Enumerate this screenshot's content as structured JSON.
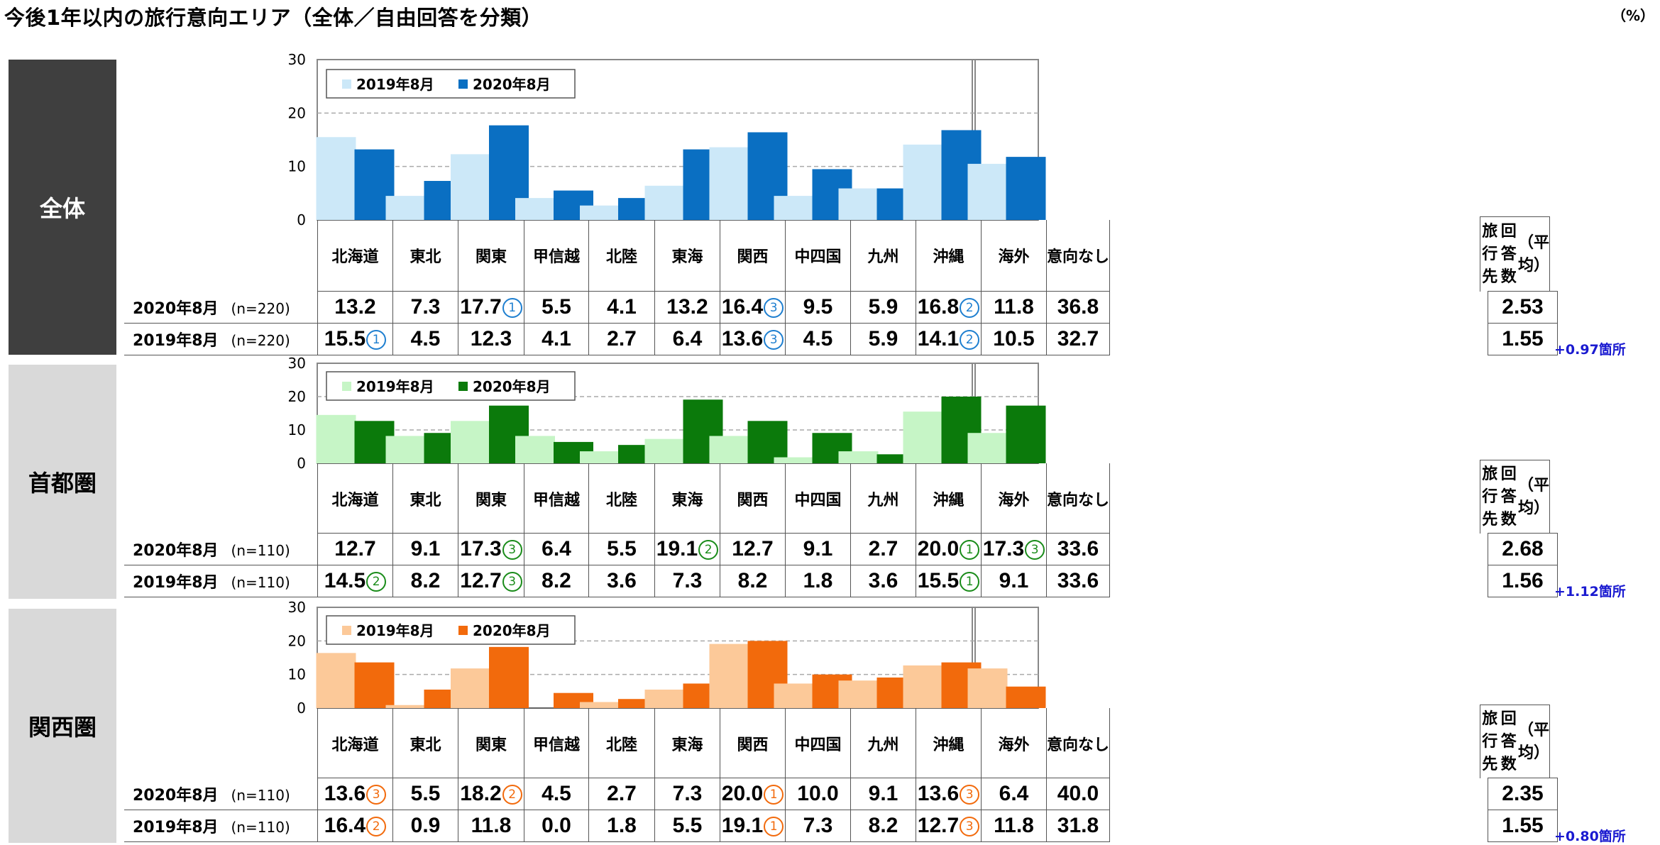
{
  "title": "今後1年以内の旅行意向エリア（全体／自由回答を分類）",
  "unit": "（%）",
  "categories": [
    "北海道",
    "東北",
    "関東",
    "甲信越",
    "北陸",
    "東海",
    "関西",
    "中四国",
    "九州",
    "沖縄",
    "海外",
    "意向なし"
  ],
  "avg_header": [
    "旅行先",
    "回答数",
    "（平均）"
  ],
  "chart_data": [
    {
      "type": "bar",
      "region": "全体",
      "categories": [
        "北海道",
        "東北",
        "関東",
        "甲信越",
        "北陸",
        "東海",
        "関西",
        "中四国",
        "九州",
        "沖縄",
        "海外"
      ],
      "series": [
        {
          "name": "2019年8月",
          "values": [
            15.5,
            4.5,
            12.3,
            4.1,
            2.7,
            6.4,
            13.6,
            4.5,
            5.9,
            14.1,
            10.5
          ]
        },
        {
          "name": "2020年8月",
          "values": [
            13.2,
            7.3,
            17.7,
            5.5,
            4.1,
            13.2,
            16.4,
            9.5,
            5.9,
            16.8,
            11.8
          ]
        }
      ],
      "ylim": [
        0,
        30
      ],
      "yticks": [
        0,
        10,
        20,
        30
      ],
      "colors": {
        "2019": "#cce8f8",
        "2020": "#0a6fc2",
        "label_bg": "#3f3f3f",
        "label_fg": "#ffffff",
        "rank": "#1e7fd0"
      },
      "rows": [
        {
          "year": "2020年8月",
          "n": "(n=220)",
          "cells": [
            "13.2",
            "7.3",
            "17.7",
            "5.5",
            "4.1",
            "13.2",
            "16.4",
            "9.5",
            "5.9",
            "16.8",
            "11.8",
            "36.8"
          ],
          "ranks": [
            "",
            "",
            "①",
            "",
            "",
            "",
            "③",
            "",
            "",
            "②",
            "",
            ""
          ],
          "avg": "2.53"
        },
        {
          "year": "2019年8月",
          "n": "(n=220)",
          "cells": [
            "15.5",
            "4.5",
            "12.3",
            "4.1",
            "2.7",
            "6.4",
            "13.6",
            "4.5",
            "5.9",
            "14.1",
            "10.5",
            "32.7"
          ],
          "ranks": [
            "①",
            "",
            "",
            "",
            "",
            "",
            "③",
            "",
            "",
            "②",
            "",
            ""
          ],
          "avg": "1.55"
        }
      ],
      "diff": "+0.97箇所"
    },
    {
      "type": "bar",
      "region": "首都圏",
      "categories": [
        "北海道",
        "東北",
        "関東",
        "甲信越",
        "北陸",
        "東海",
        "関西",
        "中四国",
        "九州",
        "沖縄",
        "海外"
      ],
      "series": [
        {
          "name": "2019年8月",
          "values": [
            14.5,
            8.2,
            12.7,
            8.2,
            3.6,
            7.3,
            8.2,
            1.8,
            3.6,
            15.5,
            9.1
          ]
        },
        {
          "name": "2020年8月",
          "values": [
            12.7,
            9.1,
            17.3,
            6.4,
            5.5,
            19.1,
            12.7,
            9.1,
            2.7,
            20.0,
            17.3
          ]
        }
      ],
      "ylim": [
        0,
        30
      ],
      "yticks": [
        0,
        10,
        20,
        30
      ],
      "colors": {
        "2019": "#c6f5c6",
        "2020": "#0b7a0b",
        "label_bg": "#d9d9d9",
        "label_fg": "#000000",
        "rank": "#1a8c1a"
      },
      "rows": [
        {
          "year": "2020年8月",
          "n": "(n=110)",
          "cells": [
            "12.7",
            "9.1",
            "17.3",
            "6.4",
            "5.5",
            "19.1",
            "12.7",
            "9.1",
            "2.7",
            "20.0",
            "17.3",
            "33.6"
          ],
          "ranks": [
            "",
            "",
            "③",
            "",
            "",
            "②",
            "",
            "",
            "",
            "①",
            "③",
            ""
          ],
          "avg": "2.68"
        },
        {
          "year": "2019年8月",
          "n": "(n=110)",
          "cells": [
            "14.5",
            "8.2",
            "12.7",
            "8.2",
            "3.6",
            "7.3",
            "8.2",
            "1.8",
            "3.6",
            "15.5",
            "9.1",
            "33.6"
          ],
          "ranks": [
            "②",
            "",
            "③",
            "",
            "",
            "",
            "",
            "",
            "",
            "①",
            "",
            ""
          ],
          "avg": "1.56"
        }
      ],
      "diff": "+1.12箇所"
    },
    {
      "type": "bar",
      "region": "関西圏",
      "categories": [
        "北海道",
        "東北",
        "関東",
        "甲信越",
        "北陸",
        "東海",
        "関西",
        "中四国",
        "九州",
        "沖縄",
        "海外"
      ],
      "series": [
        {
          "name": "2019年8月",
          "values": [
            16.4,
            0.9,
            11.8,
            0.0,
            1.8,
            5.5,
            19.1,
            7.3,
            8.2,
            12.7,
            11.8
          ]
        },
        {
          "name": "2020年8月",
          "values": [
            13.6,
            5.5,
            18.2,
            4.5,
            2.7,
            7.3,
            20.0,
            10.0,
            9.1,
            13.6,
            6.4
          ]
        }
      ],
      "ylim": [
        0,
        30
      ],
      "yticks": [
        0,
        10,
        20,
        30
      ],
      "colors": {
        "2019": "#fcc999",
        "2020": "#f26a0c",
        "label_bg": "#d9d9d9",
        "label_fg": "#000000",
        "rank": "#f26a0c"
      },
      "rows": [
        {
          "year": "2020年8月",
          "n": "(n=110)",
          "cells": [
            "13.6",
            "5.5",
            "18.2",
            "4.5",
            "2.7",
            "7.3",
            "20.0",
            "10.0",
            "9.1",
            "13.6",
            "6.4",
            "40.0"
          ],
          "ranks": [
            "③",
            "",
            "②",
            "",
            "",
            "",
            "①",
            "",
            "",
            "③",
            "",
            ""
          ],
          "avg": "2.35"
        },
        {
          "year": "2019年8月",
          "n": "(n=110)",
          "cells": [
            "16.4",
            "0.9",
            "11.8",
            "0.0",
            "1.8",
            "5.5",
            "19.1",
            "7.3",
            "8.2",
            "12.7",
            "11.8",
            "31.8"
          ],
          "ranks": [
            "②",
            "",
            "",
            "",
            "",
            "",
            "①",
            "",
            "",
            "③",
            "",
            ""
          ],
          "avg": "1.55"
        }
      ],
      "diff": "+0.80箇所"
    }
  ]
}
